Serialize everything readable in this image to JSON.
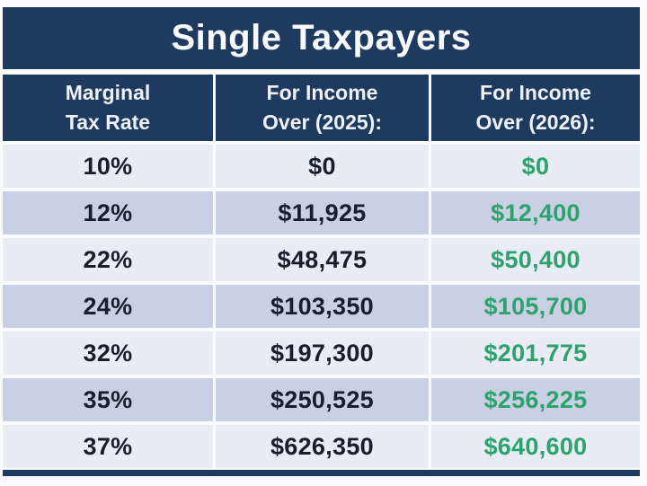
{
  "title": "Single Taxpayers",
  "colors": {
    "navy": "#1e3a5e",
    "row_light": "#e9ebf5",
    "row_dark": "#c9d0e4",
    "green_2026": "#2da26c",
    "header_text": "#eef2f8",
    "body_text": "#171e2c",
    "page_background": "#fbfbfd"
  },
  "table": {
    "headers": [
      {
        "line1": "Marginal",
        "line2": "Tax Rate"
      },
      {
        "line1": "For Income",
        "line2": "Over (2025):"
      },
      {
        "line1": "For Income",
        "line2": "Over (2026):"
      }
    ],
    "rows": [
      {
        "rate": "10%",
        "income_2025": "$0",
        "income_2026": "$0"
      },
      {
        "rate": "12%",
        "income_2025": "$11,925",
        "income_2026": "$12,400"
      },
      {
        "rate": "22%",
        "income_2025": "$48,475",
        "income_2026": "$50,400"
      },
      {
        "rate": "24%",
        "income_2025": "$103,350",
        "income_2026": "$105,700"
      },
      {
        "rate": "32%",
        "income_2025": "$197,300",
        "income_2026": "$201,775"
      },
      {
        "rate": "35%",
        "income_2025": "$250,525",
        "income_2026": "$256,225"
      },
      {
        "rate": "37%",
        "income_2025": "$626,350",
        "income_2026": "$640,600"
      }
    ]
  },
  "chart_data": {
    "type": "table",
    "title": "Single Taxpayers",
    "columns": [
      "Marginal Tax Rate",
      "For Income Over (2025):",
      "For Income Over (2026):"
    ],
    "rows": [
      [
        "10%",
        0,
        0
      ],
      [
        "12%",
        11925,
        12400
      ],
      [
        "22%",
        48475,
        50400
      ],
      [
        "24%",
        103350,
        105700
      ],
      [
        "32%",
        197300,
        201775
      ],
      [
        "35%",
        250525,
        256225
      ],
      [
        "37%",
        626350,
        640600
      ]
    ],
    "notes": "2026 column values rendered in green; header and title bars in dark navy; body rows alternate light/dark lavender"
  }
}
